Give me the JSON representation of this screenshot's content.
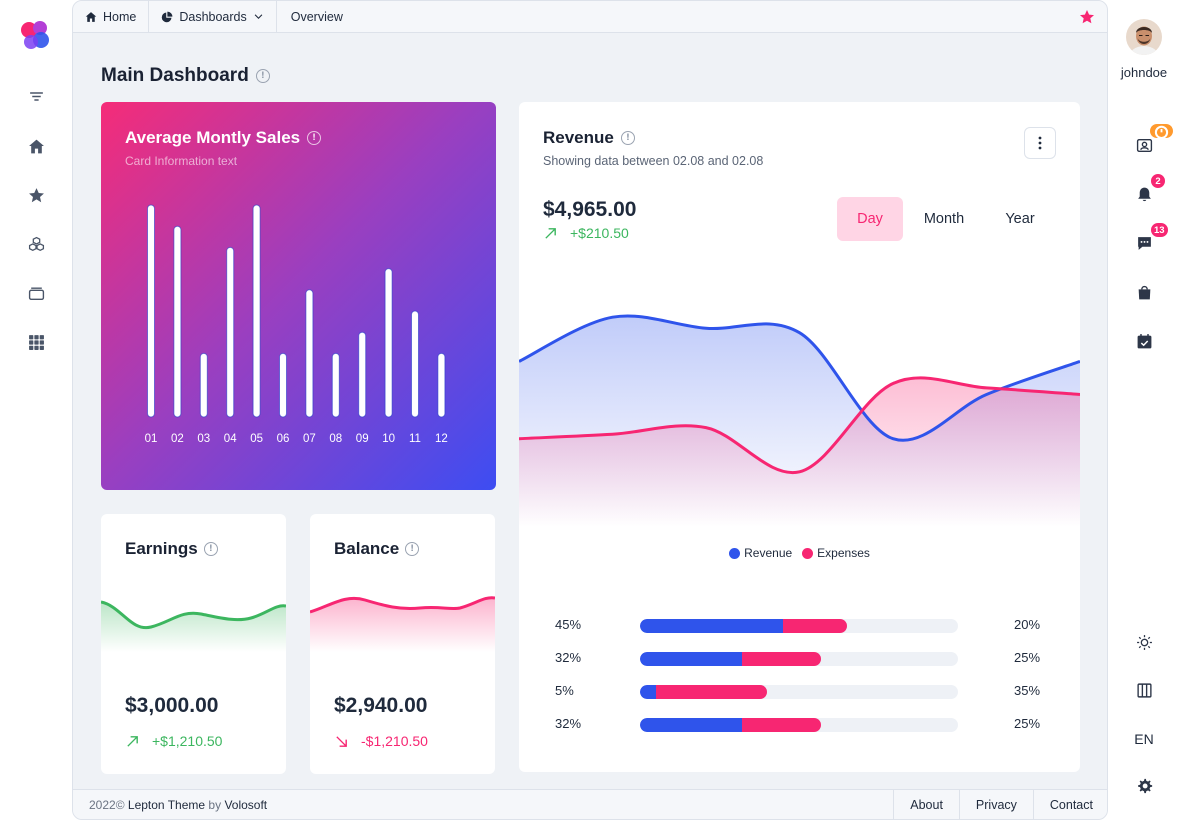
{
  "breadcrumb": {
    "home": "Home",
    "dashboards": "Dashboards",
    "overview": "Overview"
  },
  "page": {
    "title": "Main Dashboard"
  },
  "sales_card": {
    "title": "Average Montly Sales",
    "subtitle": "Card Information text",
    "chart_data": {
      "type": "bar",
      "categories": [
        "01",
        "02",
        "03",
        "04",
        "05",
        "06",
        "07",
        "08",
        "09",
        "10",
        "11",
        "12"
      ],
      "values": [
        100,
        90,
        30,
        80,
        100,
        30,
        60,
        30,
        40,
        70,
        50,
        30
      ],
      "ylim": [
        0,
        100
      ],
      "color": "#ffffff"
    }
  },
  "earnings_card": {
    "title": "Earnings",
    "value": "$3,000.00",
    "change": "+$1,210.50",
    "trend": "up",
    "color": "#3cb65f"
  },
  "balance_card": {
    "title": "Balance",
    "value": "$2,940.00",
    "change": "-$1,210.50",
    "trend": "down",
    "color": "#f72672"
  },
  "revenue_card": {
    "title": "Revenue",
    "subtitle": "Showing data between 02.08 and 02.08",
    "value": "$4,965.00",
    "change": "+$210.50",
    "periods": [
      "Day",
      "Month",
      "Year"
    ],
    "active_period": "Day",
    "chart_data": {
      "type": "area",
      "x": [
        0,
        1,
        2,
        3,
        4,
        5,
        6
      ],
      "series": [
        {
          "name": "Revenue",
          "color": "#2f54eb",
          "values": [
            75,
            95,
            90,
            88,
            40,
            60,
            75
          ]
        },
        {
          "name": "Expenses",
          "color": "#f72672",
          "values": [
            40,
            42,
            45,
            25,
            65,
            63,
            60
          ]
        }
      ],
      "ylim": [
        0,
        120
      ],
      "legend": "bottom-center"
    },
    "legend": [
      "Revenue",
      "Expenses"
    ],
    "progress_rows": [
      {
        "left": "45%",
        "right": "20%",
        "blue": 45,
        "pink": 20
      },
      {
        "left": "32%",
        "right": "25%",
        "blue": 32,
        "pink": 25
      },
      {
        "left": "5%",
        "right": "35%",
        "blue": 5,
        "pink": 35
      },
      {
        "left": "32%",
        "right": "25%",
        "blue": 32,
        "pink": 25
      }
    ]
  },
  "footer": {
    "year": "2022©",
    "theme": "Lepton Theme",
    "by": "by",
    "company": "Volosoft",
    "links": [
      "About",
      "Privacy",
      "Contact"
    ]
  },
  "user": {
    "name": "johndoe",
    "badges": {
      "notifications": "2",
      "messages": "13"
    }
  },
  "language": "EN",
  "icons": {
    "left": [
      "filter-icon",
      "home-icon",
      "star-icon",
      "cubes-icon",
      "layers-icon",
      "grid-icon"
    ],
    "right": [
      "contact-card-icon",
      "bell-icon",
      "chat-icon",
      "shopping-bag-icon",
      "calendar-check-icon",
      "sun-icon",
      "columns-icon",
      "gear-icon"
    ]
  }
}
